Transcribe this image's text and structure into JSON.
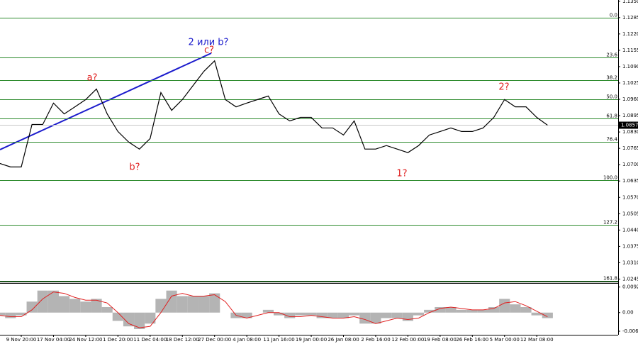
{
  "chart_data": {
    "type": "line",
    "categories": [
      null,
      null,
      "9 Nov 20:00",
      null,
      null,
      "17 Nov 04:00",
      null,
      null,
      "24 Nov 12:00",
      null,
      null,
      "1 Dec 20:00",
      null,
      null,
      "11 Dec 04:00",
      null,
      null,
      "18 Dec 12:00",
      null,
      null,
      "27 Dec 00:00",
      null,
      null,
      "4 Jan 08:00",
      null,
      null,
      "11 Jan 16:00",
      null,
      null,
      "19 Jan 00:00",
      null,
      null,
      "26 Jan 08:00",
      null,
      null,
      "2 Feb 16:00",
      null,
      null,
      "12 Feb 00:00",
      null,
      null,
      "19 Feb 08:00",
      null,
      null,
      "26 Feb 16:00",
      null,
      null,
      "5 Mar 00:00",
      null,
      null,
      "12 Mar 08:00",
      null
    ],
    "values": [
      1.0705,
      1.0691,
      1.0691,
      1.086,
      1.086,
      1.0945,
      1.0902,
      1.093,
      1.0959,
      1.1001,
      1.0902,
      1.0832,
      1.079,
      1.0762,
      1.0804,
      1.0987,
      1.0916,
      1.0959,
      1.1015,
      1.1071,
      1.1113,
      1.0959,
      1.093,
      1.0945,
      1.0959,
      1.0973,
      1.0902,
      1.0874,
      1.0888,
      1.0888,
      1.0846,
      1.0846,
      1.0818,
      1.0874,
      1.0762,
      1.0762,
      1.0776,
      1.0762,
      1.0748,
      1.0776,
      1.0818,
      1.0832,
      1.0846,
      1.0832,
      1.0832,
      1.0846,
      1.0888,
      1.0959,
      1.093,
      1.093,
      1.0888,
      1.0857
    ],
    "color": "#000000",
    "ylim": [
      1.0235,
      1.1355
    ],
    "yticks": [
      {
        "value": 1.135,
        "label": "1.1350"
      },
      {
        "value": 1.1285,
        "label": "1.1285"
      },
      {
        "value": 1.122,
        "label": "1.1220"
      },
      {
        "value": 1.1155,
        "label": "1.1155"
      },
      {
        "value": 1.109,
        "label": "1.1090"
      },
      {
        "value": 1.1025,
        "label": "1.1025"
      },
      {
        "value": 1.096,
        "label": "1.0960"
      },
      {
        "value": 1.0895,
        "label": "1.0895"
      },
      {
        "value": 1.083,
        "label": "1.0830"
      },
      {
        "value": 1.0765,
        "label": "1.0765"
      },
      {
        "value": 1.07,
        "label": "1.0700"
      },
      {
        "value": 1.0635,
        "label": "1.0635"
      },
      {
        "value": 1.057,
        "label": "1.0570"
      },
      {
        "value": 1.0505,
        "label": "1.0505"
      },
      {
        "value": 1.044,
        "label": "1.0440"
      },
      {
        "value": 1.0375,
        "label": "1.0375"
      },
      {
        "value": 1.031,
        "label": "1.0310"
      },
      {
        "value": 1.0245,
        "label": "1.0245"
      }
    ],
    "fib_color": "#2e8b2e",
    "fib_levels": [
      {
        "value": 1.1285,
        "label": "0.0"
      },
      {
        "value": 1.1127,
        "label": "23.6"
      },
      {
        "value": 1.1035,
        "label": "38.2"
      },
      {
        "value": 1.0959,
        "label": "50.0"
      },
      {
        "value": 1.0883,
        "label": "61.8"
      },
      {
        "value": 1.079,
        "label": "76.4"
      },
      {
        "value": 1.0638,
        "label": "100.0"
      },
      {
        "value": 1.0461,
        "label": "127.2"
      },
      {
        "value": 1.0238,
        "label": "161.8"
      }
    ],
    "annotations": [
      {
        "text": "2 или b?",
        "color": "#1a1acc"
      },
      {
        "text": "c?",
        "color": "#e02020"
      },
      {
        "text": "a?",
        "color": "#e02020"
      },
      {
        "text": "b?",
        "color": "#e02020"
      },
      {
        "text": "1?",
        "color": "#e02020"
      },
      {
        "text": "2?",
        "color": "#e02020"
      }
    ],
    "oscillator": {
      "ylim": [
        -0.0078,
        0.0105
      ],
      "yticks": [
        0.00929,
        {
          "value": 0,
          "label": "0.00"
        },
        -0.00677
      ],
      "color": "#b4b4b4",
      "signal_color": "#e02020",
      "values": [
        -0.001,
        -0.002,
        -0.001,
        0.004,
        0.008,
        0.008,
        0.006,
        0.005,
        0.004,
        0.005,
        0.002,
        -0.003,
        -0.005,
        -0.006,
        -0.004,
        0.005,
        0.008,
        0.006,
        0.006,
        0.006,
        0.007,
        0.0,
        -0.002,
        -0.002,
        0.0,
        0.001,
        -0.001,
        -0.002,
        -0.001,
        -0.001,
        -0.002,
        -0.002,
        -0.002,
        -0.001,
        -0.004,
        -0.004,
        -0.002,
        -0.002,
        -0.003,
        -0.001,
        0.001,
        0.002,
        0.002,
        0.001,
        0.001,
        0.001,
        0.002,
        0.005,
        0.003,
        0.002,
        -0.001,
        -0.002
      ],
      "signal": [
        -0.001,
        -0.0015,
        -0.0015,
        0.001,
        0.005,
        0.0075,
        0.007,
        0.0055,
        0.0045,
        0.0045,
        0.0035,
        0.0,
        -0.004,
        -0.0055,
        -0.005,
        0.0,
        0.006,
        0.007,
        0.006,
        0.006,
        0.0065,
        0.004,
        -0.001,
        -0.002,
        -0.001,
        0.0,
        0.0,
        -0.0015,
        -0.0015,
        -0.001,
        -0.0015,
        -0.002,
        -0.002,
        -0.0015,
        -0.0025,
        -0.004,
        -0.003,
        -0.002,
        -0.0025,
        -0.002,
        0.0,
        0.0015,
        0.002,
        0.0015,
        0.001,
        0.001,
        0.0015,
        0.0035,
        0.004,
        0.0025,
        0.0005,
        -0.0015
      ]
    }
  }
}
